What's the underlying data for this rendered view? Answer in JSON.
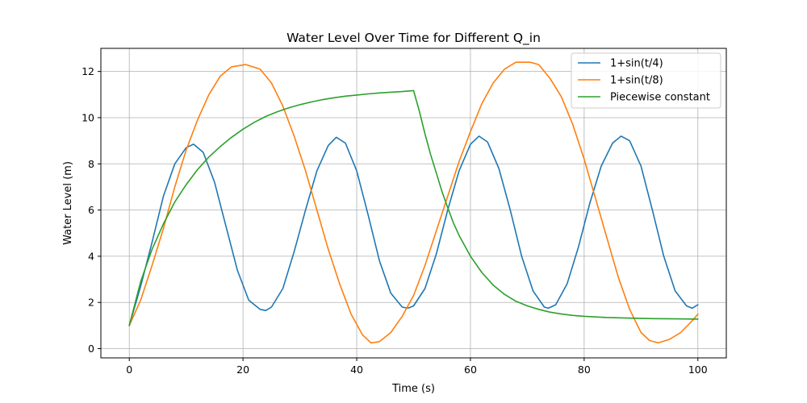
{
  "chart_data": {
    "type": "line",
    "title": "Water Level Over Time for Different Q_in",
    "xlabel": "Time (s)",
    "ylabel": "Water Level (m)",
    "xlim": [
      -5,
      105
    ],
    "ylim": [
      -0.4,
      13
    ],
    "xticks": [
      0,
      20,
      40,
      60,
      80,
      100
    ],
    "yticks": [
      0,
      2,
      4,
      6,
      8,
      10,
      12
    ],
    "grid": true,
    "legend_position": "top-right",
    "series": [
      {
        "name": "1+sin(t/4)",
        "color": "#1f77b4",
        "points": [
          [
            0,
            1.0
          ],
          [
            2,
            2.7
          ],
          [
            4,
            4.6
          ],
          [
            6,
            6.6
          ],
          [
            8,
            8.0
          ],
          [
            10,
            8.7
          ],
          [
            11.3,
            8.85
          ],
          [
            13,
            8.5
          ],
          [
            15,
            7.2
          ],
          [
            17,
            5.3
          ],
          [
            19,
            3.4
          ],
          [
            21,
            2.1
          ],
          [
            23,
            1.7
          ],
          [
            24,
            1.65
          ],
          [
            25,
            1.8
          ],
          [
            27,
            2.6
          ],
          [
            29,
            4.2
          ],
          [
            31,
            6.0
          ],
          [
            33,
            7.7
          ],
          [
            35,
            8.8
          ],
          [
            36.4,
            9.15
          ],
          [
            38,
            8.9
          ],
          [
            40,
            7.7
          ],
          [
            42,
            5.8
          ],
          [
            44,
            3.8
          ],
          [
            46,
            2.4
          ],
          [
            48,
            1.8
          ],
          [
            49,
            1.75
          ],
          [
            50,
            1.85
          ],
          [
            52,
            2.6
          ],
          [
            54,
            4.1
          ],
          [
            56,
            6.0
          ],
          [
            58,
            7.7
          ],
          [
            60,
            8.85
          ],
          [
            61.5,
            9.2
          ],
          [
            63,
            8.95
          ],
          [
            65,
            7.8
          ],
          [
            67,
            6.0
          ],
          [
            69,
            4.0
          ],
          [
            71,
            2.5
          ],
          [
            73,
            1.8
          ],
          [
            73.7,
            1.75
          ],
          [
            75,
            1.9
          ],
          [
            77,
            2.8
          ],
          [
            79,
            4.4
          ],
          [
            81,
            6.3
          ],
          [
            83,
            7.9
          ],
          [
            85,
            8.9
          ],
          [
            86.5,
            9.2
          ],
          [
            88,
            9.0
          ],
          [
            90,
            7.9
          ],
          [
            92,
            6.0
          ],
          [
            94,
            4.0
          ],
          [
            96,
            2.5
          ],
          [
            98,
            1.85
          ],
          [
            99,
            1.75
          ],
          [
            100,
            1.9
          ]
        ]
      },
      {
        "name": "1+sin(t/8)",
        "color": "#ff7f0e",
        "points": [
          [
            0,
            1.0
          ],
          [
            2,
            2.1
          ],
          [
            4,
            3.6
          ],
          [
            6,
            5.2
          ],
          [
            8,
            7.0
          ],
          [
            10,
            8.6
          ],
          [
            12,
            9.9
          ],
          [
            14,
            11.0
          ],
          [
            16,
            11.8
          ],
          [
            18,
            12.2
          ],
          [
            20.5,
            12.3
          ],
          [
            23,
            12.1
          ],
          [
            25,
            11.5
          ],
          [
            27,
            10.5
          ],
          [
            29,
            9.2
          ],
          [
            31,
            7.7
          ],
          [
            33,
            6.0
          ],
          [
            35,
            4.3
          ],
          [
            37,
            2.8
          ],
          [
            39,
            1.5
          ],
          [
            41,
            0.6
          ],
          [
            42.5,
            0.25
          ],
          [
            44,
            0.3
          ],
          [
            46,
            0.7
          ],
          [
            48,
            1.4
          ],
          [
            50,
            2.3
          ],
          [
            52,
            3.6
          ],
          [
            54,
            5.1
          ],
          [
            56,
            6.6
          ],
          [
            58,
            8.1
          ],
          [
            60,
            9.4
          ],
          [
            62,
            10.6
          ],
          [
            64,
            11.5
          ],
          [
            66,
            12.1
          ],
          [
            68,
            12.4
          ],
          [
            70.5,
            12.4
          ],
          [
            72,
            12.3
          ],
          [
            74,
            11.7
          ],
          [
            76,
            10.9
          ],
          [
            78,
            9.7
          ],
          [
            80,
            8.2
          ],
          [
            82,
            6.5
          ],
          [
            84,
            4.8
          ],
          [
            86,
            3.1
          ],
          [
            88,
            1.7
          ],
          [
            90,
            0.7
          ],
          [
            91.5,
            0.35
          ],
          [
            93,
            0.25
          ],
          [
            95,
            0.4
          ],
          [
            97,
            0.7
          ],
          [
            99,
            1.2
          ],
          [
            100,
            1.5
          ]
        ]
      },
      {
        "name": "Piecewise constant",
        "color": "#2ca02c",
        "points": [
          [
            0,
            1.0
          ],
          [
            2,
            2.9
          ],
          [
            4,
            4.3
          ],
          [
            6,
            5.4
          ],
          [
            8,
            6.35
          ],
          [
            10,
            7.1
          ],
          [
            12,
            7.75
          ],
          [
            14,
            8.3
          ],
          [
            16,
            8.75
          ],
          [
            18,
            9.15
          ],
          [
            20,
            9.5
          ],
          [
            22,
            9.8
          ],
          [
            24,
            10.05
          ],
          [
            26,
            10.25
          ],
          [
            28,
            10.42
          ],
          [
            30,
            10.56
          ],
          [
            32,
            10.68
          ],
          [
            34,
            10.78
          ],
          [
            36,
            10.86
          ],
          [
            38,
            10.93
          ],
          [
            40,
            10.98
          ],
          [
            42,
            11.03
          ],
          [
            44,
            11.07
          ],
          [
            46,
            11.1
          ],
          [
            48,
            11.13
          ],
          [
            50,
            11.17
          ],
          [
            51,
            10.3
          ],
          [
            52,
            9.3
          ],
          [
            53,
            8.4
          ],
          [
            54,
            7.6
          ],
          [
            55,
            6.8
          ],
          [
            56,
            6.1
          ],
          [
            57,
            5.45
          ],
          [
            58,
            4.9
          ],
          [
            60,
            4.0
          ],
          [
            62,
            3.3
          ],
          [
            64,
            2.75
          ],
          [
            66,
            2.35
          ],
          [
            68,
            2.05
          ],
          [
            70,
            1.85
          ],
          [
            72,
            1.7
          ],
          [
            74,
            1.58
          ],
          [
            76,
            1.5
          ],
          [
            78,
            1.44
          ],
          [
            80,
            1.4
          ],
          [
            84,
            1.35
          ],
          [
            88,
            1.32
          ],
          [
            92,
            1.3
          ],
          [
            96,
            1.29
          ],
          [
            100,
            1.28
          ]
        ]
      }
    ]
  }
}
